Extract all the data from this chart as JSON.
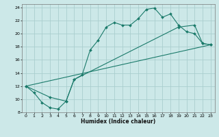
{
  "xlabel": "Humidex (Indice chaleur)",
  "bg_color": "#cce8e8",
  "grid_color": "#aacece",
  "line_color": "#1a7a6a",
  "xlim": [
    -0.5,
    23.5
  ],
  "ylim": [
    8,
    24.5
  ],
  "xticks": [
    0,
    1,
    2,
    3,
    4,
    5,
    6,
    7,
    8,
    9,
    10,
    11,
    12,
    13,
    14,
    15,
    16,
    17,
    18,
    19,
    20,
    21,
    22,
    23
  ],
  "yticks": [
    8,
    10,
    12,
    14,
    16,
    18,
    20,
    22,
    24
  ],
  "line1_x": [
    0,
    1,
    2,
    3,
    4,
    5,
    6,
    7,
    8,
    9,
    10,
    11,
    12,
    13,
    14,
    15,
    16,
    17,
    18,
    19,
    20,
    21,
    22,
    23
  ],
  "line1_y": [
    12,
    11,
    9.5,
    8.7,
    8.5,
    9.7,
    13,
    13.7,
    17.5,
    19,
    21,
    21.7,
    21.3,
    21.3,
    22.3,
    23.7,
    23.9,
    22.5,
    23,
    21.3,
    20.3,
    20,
    18.5,
    18.3
  ],
  "line2_x": [
    0,
    3,
    5,
    6,
    19,
    21,
    22,
    23
  ],
  "line2_y": [
    12,
    10.3,
    9.7,
    13,
    21,
    21.3,
    18.5,
    18.3
  ],
  "line3_x": [
    0,
    23
  ],
  "line3_y": [
    12,
    18.3
  ]
}
